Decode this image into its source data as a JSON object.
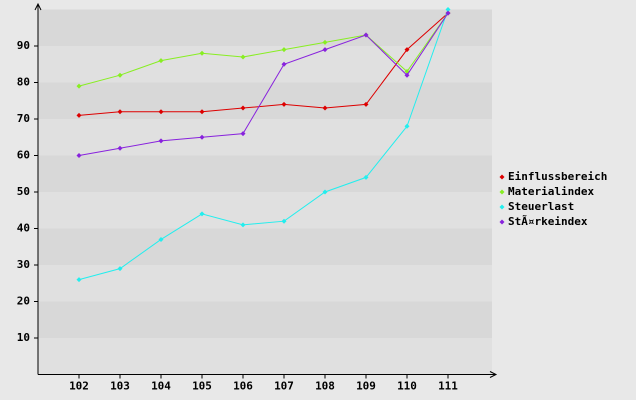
{
  "chart_data": {
    "type": "line",
    "categories": [
      "102",
      "103",
      "104",
      "105",
      "106",
      "107",
      "108",
      "109",
      "110",
      "111"
    ],
    "series": [
      {
        "name": "Einflussbereich",
        "color": "#dd0000",
        "values": [
          71,
          72,
          72,
          72,
          73,
          74,
          73,
          74,
          89,
          99
        ]
      },
      {
        "name": "Materialindex",
        "color": "#88ee22",
        "values": [
          79,
          82,
          86,
          88,
          87,
          89,
          91,
          93,
          83,
          99
        ]
      },
      {
        "name": "Steuerlast",
        "color": "#22eeee",
        "values": [
          26,
          29,
          37,
          44,
          41,
          42,
          50,
          54,
          68,
          100
        ]
      },
      {
        "name": "StÃ¤rkeindex",
        "color": "#8822dd",
        "values": [
          60,
          62,
          64,
          65,
          66,
          85,
          89,
          93,
          82,
          99
        ]
      }
    ],
    "ylim": [
      0,
      100
    ],
    "yticks": [
      10,
      20,
      30,
      40,
      50,
      60,
      70,
      80,
      90
    ],
    "grid": true,
    "legend": "right"
  }
}
